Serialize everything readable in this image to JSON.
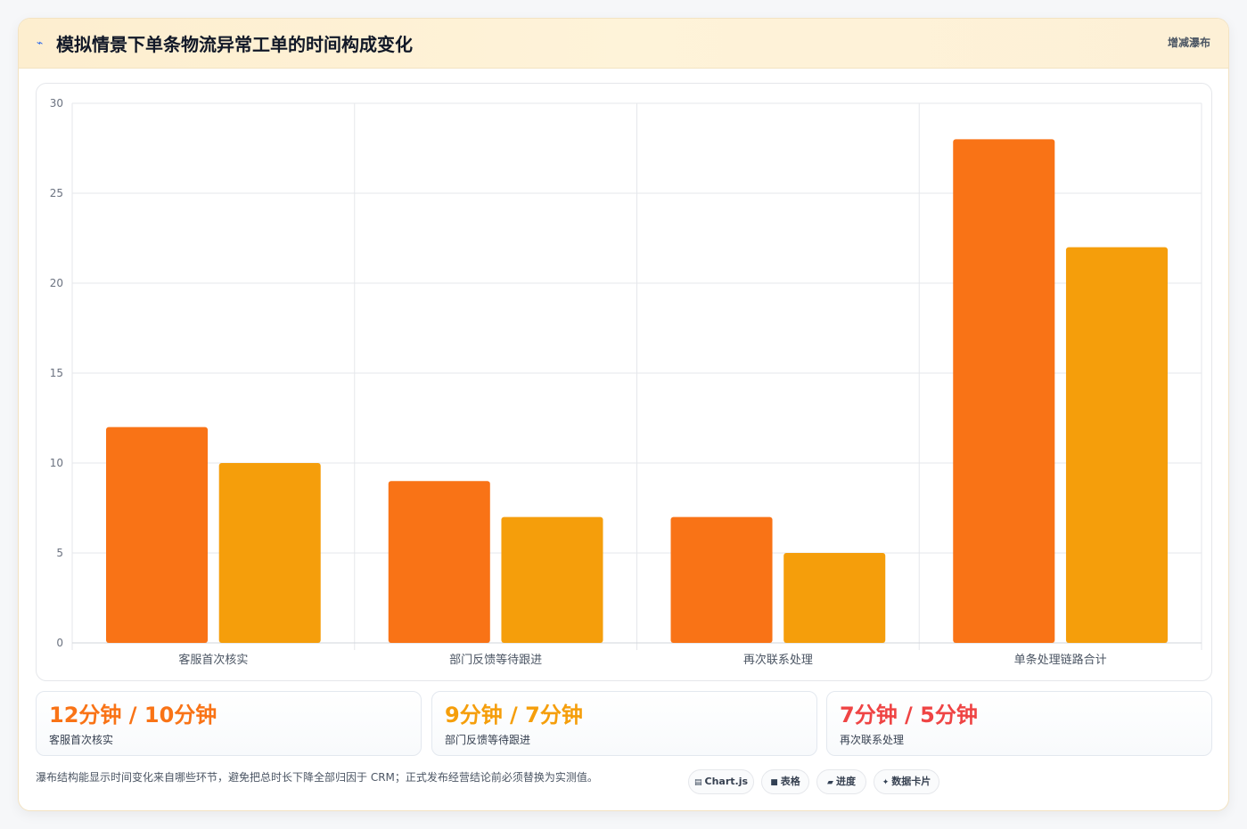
{
  "header": {
    "title": "模拟情景下单条物流异常工单的时间构成变化",
    "title_icon": "line-chart-icon",
    "badge": "增减瀑布"
  },
  "chart_data": {
    "type": "bar",
    "categories": [
      "客服首次核实",
      "部门反馈等待跟进",
      "再次联系处理",
      "单条处理链路合计"
    ],
    "series": [
      {
        "values": [
          12,
          9,
          7,
          28
        ],
        "color": "#f97316"
      },
      {
        "values": [
          10,
          7,
          5,
          22
        ],
        "color": "#f59e0b"
      }
    ],
    "ylim": [
      0,
      30
    ],
    "yticks": [
      0,
      5,
      10,
      15,
      20,
      25,
      30
    ],
    "grid": true,
    "legend": "none"
  },
  "kpis": [
    {
      "value": "12分钟 / 10分钟",
      "label": "客服首次核实",
      "color": "#f97316"
    },
    {
      "value": "9分钟 / 7分钟",
      "label": "部门反馈等待跟进",
      "color": "#f59e0b"
    },
    {
      "value": "7分钟 / 5分钟",
      "label": "再次联系处理",
      "color": "#ef4444"
    }
  ],
  "footnote": "瀑布结构能显示时间变化来自哪些环节，避免把总时长下降全部归因于 CRM；正式发布经营结论前必须替换为实测值。",
  "tags": [
    {
      "icon": "chart-icon",
      "glyph": "▤",
      "label": "Chart.js"
    },
    {
      "icon": "table-icon",
      "glyph": "■",
      "label": "表格"
    },
    {
      "icon": "progress-icon",
      "glyph": "▰",
      "label": "进度"
    },
    {
      "icon": "sparkle-icon",
      "glyph": "✦",
      "label": "数据卡片"
    }
  ]
}
